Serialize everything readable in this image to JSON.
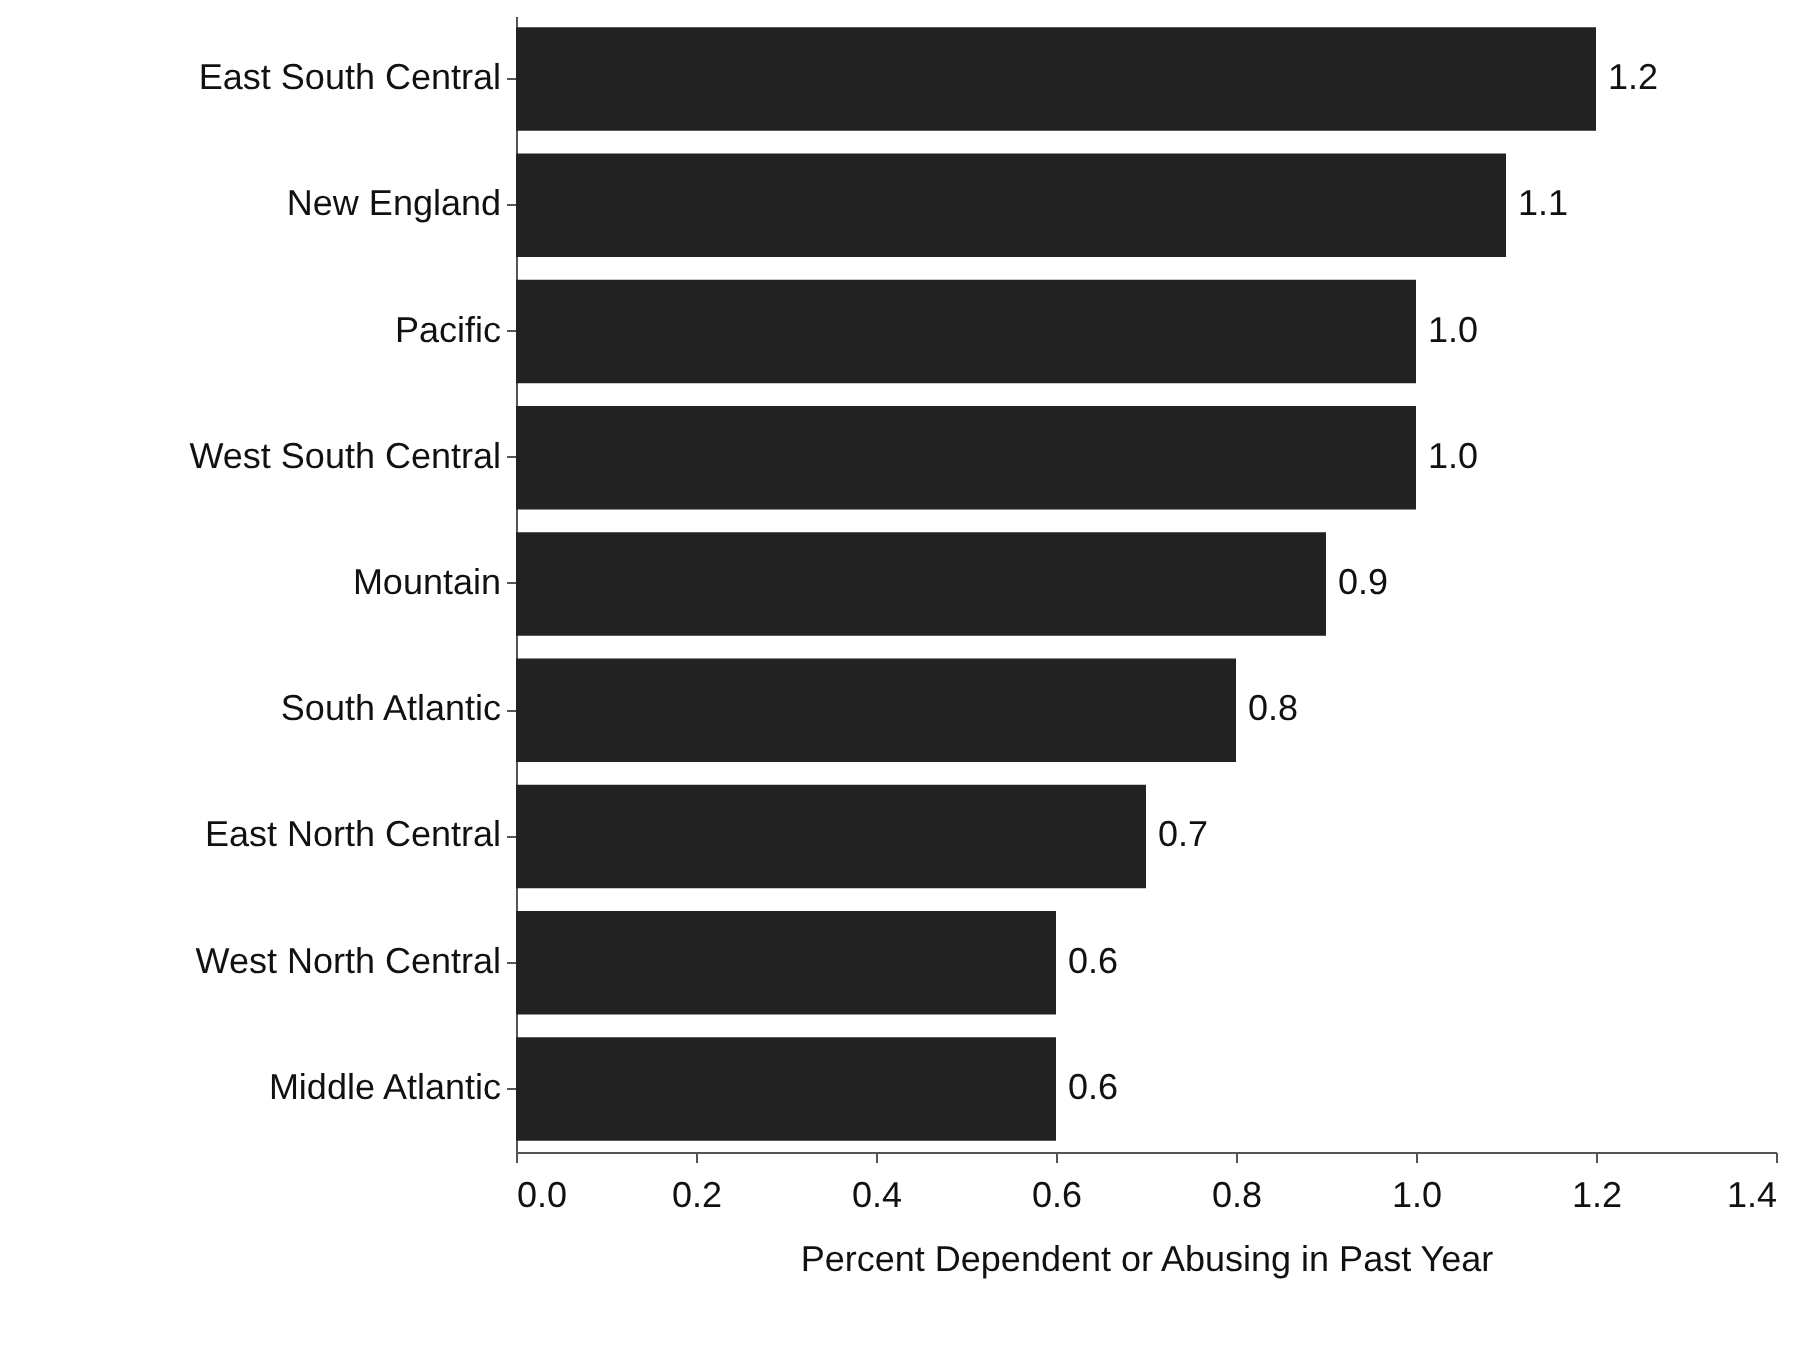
{
  "chart_data": {
    "type": "bar",
    "orientation": "horizontal",
    "xlabel": "Percent Dependent or Abusing in Past Year",
    "categories": [
      "East South Central",
      "New England",
      "Pacific",
      "West South Central",
      "Mountain",
      "South Atlantic",
      "East North Central",
      "West North Central",
      "Middle Atlantic"
    ],
    "values": [
      1.2,
      1.1,
      1.0,
      1.0,
      0.9,
      0.8,
      0.7,
      0.6,
      0.6
    ],
    "value_labels": [
      "1.2",
      "1.1",
      "1.0",
      "1.0",
      "0.9",
      "0.8",
      "0.7",
      "0.6",
      "0.6"
    ],
    "color": "#222222",
    "xlim": [
      0,
      1.4
    ],
    "xticks": [
      {
        "value": 0,
        "label": "0.0"
      },
      {
        "value": 0.2,
        "label": "0.2"
      },
      {
        "value": 0.4,
        "label": "0.4"
      },
      {
        "value": 0.6,
        "label": "0.6"
      },
      {
        "value": 0.8,
        "label": "0.8"
      },
      {
        "value": 1,
        "label": "1.0"
      },
      {
        "value": 1.2,
        "label": "1.2"
      },
      {
        "value": 1.4,
        "label": "1.4"
      }
    ],
    "grid": false
  }
}
